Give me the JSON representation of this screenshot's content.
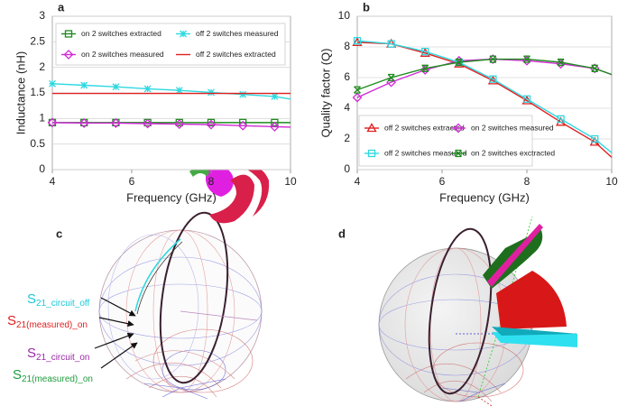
{
  "chart_data": [
    {
      "type": "line",
      "title": "a",
      "x_label": "Frequency (GHz)",
      "y_label": "Inductance (nH)",
      "xlim": [
        4,
        10
      ],
      "xticks": [
        4,
        6,
        8,
        10
      ],
      "ylim": [
        0,
        3
      ],
      "yticks": [
        0,
        0.5,
        1,
        1.5,
        2,
        2.5,
        3
      ],
      "grid": true,
      "legend": "upper center",
      "x": [
        4,
        4.8,
        5.6,
        6.4,
        7.2,
        8,
        8.8,
        9.6,
        10
      ],
      "series": [
        {
          "name": "on 2 switches extracted",
          "color": "#1e8c1e",
          "marker": "square",
          "values": [
            0.92,
            0.92,
            0.92,
            0.92,
            0.92,
            0.92,
            0.92,
            0.92,
            0.92
          ]
        },
        {
          "name": "off 2 switches measured",
          "color": "#2fd8e0",
          "marker": "star",
          "values": [
            1.68,
            1.65,
            1.62,
            1.58,
            1.55,
            1.51,
            1.47,
            1.43,
            1.38
          ]
        },
        {
          "name": "on 2 switches measured",
          "color": "#d12ad6",
          "marker": "diamond",
          "values": [
            0.92,
            0.91,
            0.91,
            0.9,
            0.89,
            0.88,
            0.86,
            0.84,
            0.83
          ]
        },
        {
          "name": "off 2 switches extracted",
          "color": "#e02020",
          "values": [
            1.49,
            1.49,
            1.49,
            1.49,
            1.49,
            1.49,
            1.49,
            1.49,
            1.49
          ]
        }
      ]
    },
    {
      "type": "line",
      "title": "b",
      "x_label": "Frequency (GHz)",
      "y_label": "Quality factor (Q)",
      "xlim": [
        4,
        10
      ],
      "xticks": [
        4,
        6,
        8,
        10
      ],
      "ylim": [
        0,
        10
      ],
      "yticks": [
        0,
        2,
        4,
        6,
        8,
        10
      ],
      "grid": true,
      "legend": "lower left",
      "x": [
        4,
        4.8,
        5.6,
        6.4,
        7.2,
        8,
        8.8,
        9.6,
        10
      ],
      "series": [
        {
          "name": "off 2 switches extracted",
          "color": "#e02020",
          "marker": "triangle",
          "values": [
            8.3,
            8.2,
            7.6,
            6.9,
            5.8,
            4.5,
            3.1,
            1.8,
            0.8
          ]
        },
        {
          "name": "on 2 switches measured",
          "color": "#d12ad6",
          "marker": "diamond",
          "values": [
            4.7,
            5.7,
            6.5,
            7.1,
            7.2,
            7.1,
            6.9,
            6.6,
            6.2
          ]
        },
        {
          "name": "off 2 switches measured",
          "color": "#2fd8e0",
          "marker": "square",
          "values": [
            8.4,
            8.2,
            7.7,
            7.0,
            5.9,
            4.6,
            3.3,
            2.0,
            1.1
          ]
        },
        {
          "name": "on 2 switches exctracted",
          "color": "#1e8c1e",
          "marker": "cross",
          "values": [
            5.2,
            6.0,
            6.6,
            7.0,
            7.2,
            7.2,
            7.0,
            6.6,
            6.2
          ]
        }
      ]
    }
  ],
  "illustrations": [
    {
      "label": "c",
      "annotations": [
        {
          "text": "S",
          "sub": "21_circuit_off",
          "color": "#19c8d8"
        },
        {
          "text": "S",
          "sub": "21(measured)_on",
          "color": "#e02020"
        },
        {
          "text": "S",
          "sub": "21_circuit_on",
          "color": "#9b2aa8"
        },
        {
          "text": "S",
          "sub": "21(measured)_on",
          "color": "#1e9c3e"
        }
      ]
    },
    {
      "label": "d"
    }
  ]
}
